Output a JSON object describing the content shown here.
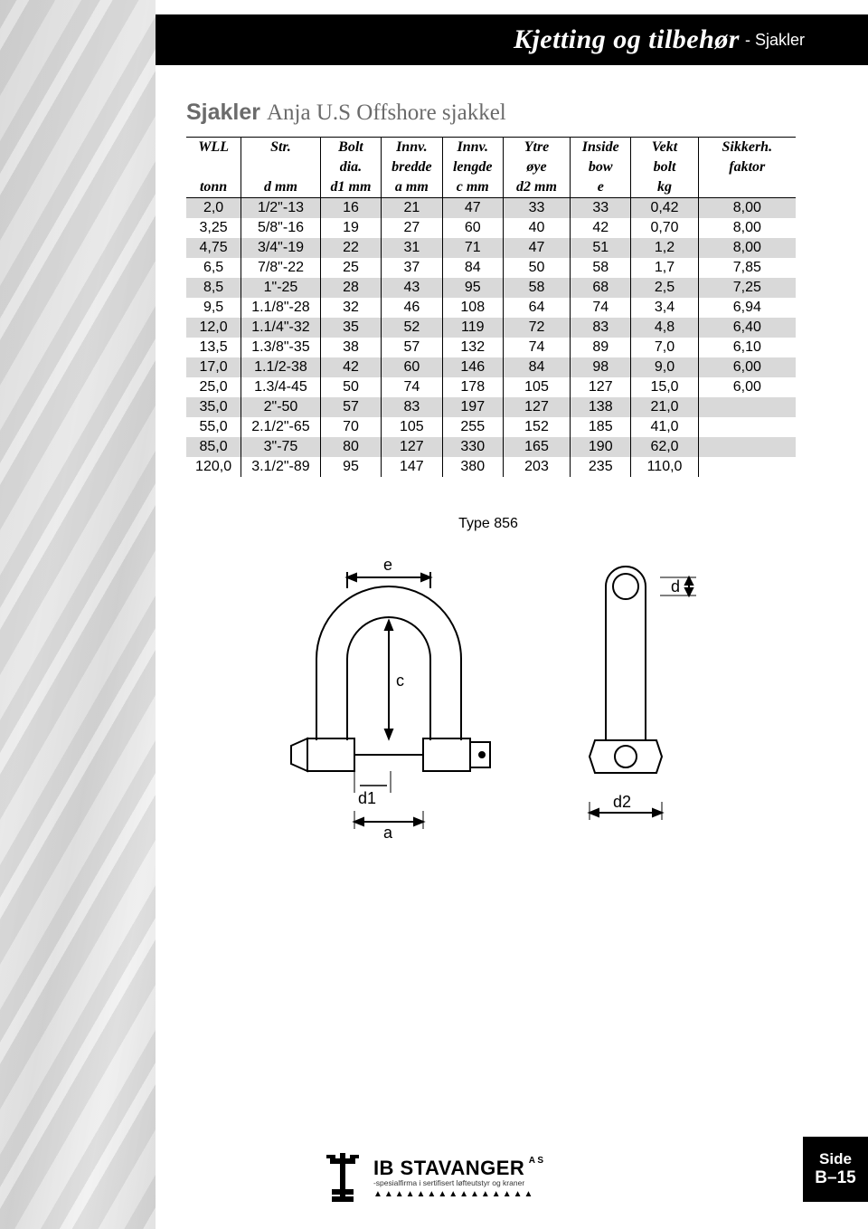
{
  "header": {
    "title_main": "Kjetting og tilbehør",
    "title_sub": "- Sjakler"
  },
  "section": {
    "title_bold": "Sjakler",
    "title_rest": "Anja U.S Offshore sjakkel"
  },
  "table": {
    "columns_line1": [
      "WLL",
      "Str.",
      "Bolt",
      "Innv.",
      "Innv.",
      "Ytre",
      "Inside",
      "Vekt",
      "Sikkerh."
    ],
    "columns_line2": [
      "",
      "",
      "dia.",
      "bredde",
      "lengde",
      "øye",
      "bow",
      "bolt",
      "faktor"
    ],
    "columns_line3": [
      "tonn",
      "d mm",
      "d1 mm",
      "a mm",
      "c mm",
      "d2 mm",
      "e",
      "kg",
      ""
    ],
    "col_widths_pct": [
      9,
      13,
      10,
      10,
      10,
      11,
      10,
      11,
      16
    ],
    "shade_color": "#d9d9d9",
    "rows": [
      {
        "shade": true,
        "cells": [
          "2,0",
          "1/2\"-13",
          "16",
          "21",
          "47",
          "33",
          "33",
          "0,42",
          "8,00"
        ]
      },
      {
        "shade": false,
        "cells": [
          "3,25",
          "5/8\"-16",
          "19",
          "27",
          "60",
          "40",
          "42",
          "0,70",
          "8,00"
        ]
      },
      {
        "shade": true,
        "cells": [
          "4,75",
          "3/4\"-19",
          "22",
          "31",
          "71",
          "47",
          "51",
          "1,2",
          "8,00"
        ]
      },
      {
        "shade": false,
        "cells": [
          "6,5",
          "7/8\"-22",
          "25",
          "37",
          "84",
          "50",
          "58",
          "1,7",
          "7,85"
        ]
      },
      {
        "shade": true,
        "cells": [
          "8,5",
          "1\"-25",
          "28",
          "43",
          "95",
          "58",
          "68",
          "2,5",
          "7,25"
        ]
      },
      {
        "shade": false,
        "cells": [
          "9,5",
          "1.1/8\"-28",
          "32",
          "46",
          "108",
          "64",
          "74",
          "3,4",
          "6,94"
        ]
      },
      {
        "shade": true,
        "cells": [
          "12,0",
          "1.1/4\"-32",
          "35",
          "52",
          "119",
          "72",
          "83",
          "4,8",
          "6,40"
        ]
      },
      {
        "shade": false,
        "cells": [
          "13,5",
          "1.3/8\"-35",
          "38",
          "57",
          "132",
          "74",
          "89",
          "7,0",
          "6,10"
        ]
      },
      {
        "shade": true,
        "cells": [
          "17,0",
          "1.1/2-38",
          "42",
          "60",
          "146",
          "84",
          "98",
          "9,0",
          "6,00"
        ]
      },
      {
        "shade": false,
        "cells": [
          "25,0",
          "1.3/4-45",
          "50",
          "74",
          "178",
          "105",
          "127",
          "15,0",
          "6,00"
        ]
      },
      {
        "shade": true,
        "cells": [
          "35,0",
          "2\"-50",
          "57",
          "83",
          "197",
          "127",
          "138",
          "21,0",
          ""
        ]
      },
      {
        "shade": false,
        "cells": [
          "55,0",
          "2.1/2\"-65",
          "70",
          "105",
          "255",
          "152",
          "185",
          "41,0",
          ""
        ]
      },
      {
        "shade": true,
        "cells": [
          "85,0",
          "3\"-75",
          "80",
          "127",
          "330",
          "165",
          "190",
          "62,0",
          ""
        ]
      },
      {
        "shade": false,
        "cells": [
          "120,0",
          "3.1/2\"-89",
          "95",
          "147",
          "380",
          "203",
          "235",
          "110,0",
          ""
        ]
      }
    ]
  },
  "diagram": {
    "caption": "Type 856",
    "labels": {
      "e": "e",
      "c": "c",
      "d1": "d1",
      "a": "a",
      "d": "d",
      "d2": "d2"
    },
    "stroke": "#000000",
    "fill": "#ffffff"
  },
  "footer": {
    "company": "IB STAVANGER",
    "suffix": "A S",
    "tagline": "-spesialfirma i sertifisert løfteutstyr og kraner",
    "dots": "▲▲▲▲▲▲▲▲▲▲▲▲▲▲▲"
  },
  "page_tab": {
    "label": "Side",
    "number": "B–15"
  }
}
